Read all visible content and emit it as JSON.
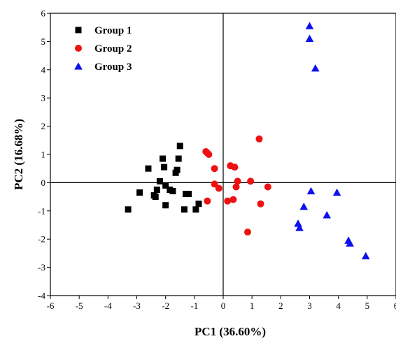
{
  "chart_data": {
    "type": "scatter",
    "title": "",
    "xlabel": "PC1 (36.60%)",
    "ylabel": "PC2 (16.68%)",
    "xlim": [
      -6,
      6
    ],
    "ylim": [
      -4,
      6
    ],
    "xticks": [
      -6,
      -5,
      -4,
      -3,
      -2,
      -1,
      0,
      1,
      2,
      3,
      4,
      5,
      6
    ],
    "yticks": [
      -4,
      -3,
      -2,
      -1,
      0,
      1,
      2,
      3,
      4,
      5,
      6
    ],
    "xtick_labels": [
      "-6",
      "-5",
      "-4",
      "-3",
      "-2",
      "-1",
      "0",
      "1",
      "2",
      "3",
      "4",
      "5",
      "6"
    ],
    "ytick_labels": [
      "-4",
      "-3",
      "-2",
      "-1",
      "0",
      "1",
      "2",
      "3",
      "4",
      "5",
      "6"
    ],
    "grid": false,
    "zero_lines": true,
    "legend_position": "top-left",
    "series": [
      {
        "name": "Group 1",
        "marker": "square",
        "color": "#000000",
        "points": [
          [
            -3.3,
            -0.95
          ],
          [
            -2.9,
            -0.35
          ],
          [
            -2.6,
            0.5
          ],
          [
            -2.4,
            -0.45
          ],
          [
            -2.35,
            -0.5
          ],
          [
            -2.3,
            -0.25
          ],
          [
            -2.2,
            0.05
          ],
          [
            -2.1,
            0.85
          ],
          [
            -2.05,
            0.55
          ],
          [
            -2.0,
            -0.1
          ],
          [
            -2.0,
            -0.8
          ],
          [
            -1.85,
            -0.25
          ],
          [
            -1.75,
            -0.3
          ],
          [
            -1.65,
            0.35
          ],
          [
            -1.6,
            0.45
          ],
          [
            -1.55,
            0.85
          ],
          [
            -1.5,
            1.3
          ],
          [
            -1.35,
            -0.95
          ],
          [
            -1.3,
            -0.4
          ],
          [
            -1.2,
            -0.4
          ],
          [
            -0.95,
            -0.95
          ],
          [
            -0.85,
            -0.75
          ]
        ]
      },
      {
        "name": "Group 2",
        "marker": "circle",
        "color": "#ee1111",
        "points": [
          [
            -0.6,
            1.1
          ],
          [
            -0.55,
            1.05
          ],
          [
            -0.5,
            1.0
          ],
          [
            -0.55,
            -0.65
          ],
          [
            -0.3,
            0.5
          ],
          [
            -0.3,
            -0.05
          ],
          [
            -0.15,
            -0.2
          ],
          [
            0.15,
            -0.65
          ],
          [
            0.25,
            0.6
          ],
          [
            0.35,
            -0.6
          ],
          [
            0.4,
            0.55
          ],
          [
            0.45,
            -0.15
          ],
          [
            0.5,
            0.05
          ],
          [
            0.85,
            -1.75
          ],
          [
            0.95,
            0.05
          ],
          [
            1.25,
            1.55
          ],
          [
            1.3,
            -0.75
          ],
          [
            1.55,
            -0.15
          ]
        ]
      },
      {
        "name": "Group 3",
        "marker": "triangle",
        "color": "#1010ee",
        "points": [
          [
            2.6,
            -1.45
          ],
          [
            2.65,
            -1.6
          ],
          [
            2.8,
            -0.85
          ],
          [
            3.0,
            5.1
          ],
          [
            3.0,
            5.55
          ],
          [
            3.05,
            -0.3
          ],
          [
            3.2,
            4.05
          ],
          [
            3.6,
            -1.15
          ],
          [
            3.95,
            -0.35
          ],
          [
            4.35,
            -2.05
          ],
          [
            4.4,
            -2.15
          ],
          [
            4.95,
            -2.6
          ]
        ]
      }
    ]
  }
}
